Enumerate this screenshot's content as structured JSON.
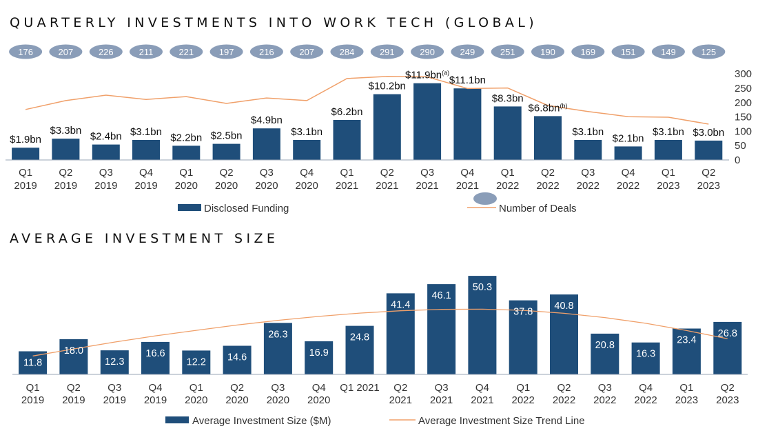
{
  "colors": {
    "bar": "#1f4e7a",
    "line": "#f0a06a",
    "pill": "#8a9db8",
    "axis": "#9aa5b5"
  },
  "chart_data": [
    {
      "type": "bar",
      "title": "QUARTERLY INVESTMENTS INTO WORK TECH (GLOBAL)",
      "categories": [
        "Q1 2019",
        "Q2 2019",
        "Q3 2019",
        "Q4 2019",
        "Q1 2020",
        "Q2 2020",
        "Q3 2020",
        "Q4 2020",
        "Q1 2021",
        "Q2 2021",
        "Q3 2021",
        "Q4 2021",
        "Q1 2022",
        "Q2 2022",
        "Q3 2022",
        "Q4 2022",
        "Q1 2023",
        "Q2 2023"
      ],
      "x_ticks": [
        [
          "Q1",
          "2019"
        ],
        [
          "Q2",
          "2019"
        ],
        [
          "Q3",
          "2019"
        ],
        [
          "Q4",
          "2019"
        ],
        [
          "Q1",
          "2020"
        ],
        [
          "Q2",
          "2020"
        ],
        [
          "Q3",
          "2020"
        ],
        [
          "Q4",
          "2020"
        ],
        [
          "Q1",
          "2021"
        ],
        [
          "Q2",
          "2021"
        ],
        [
          "Q3",
          "2021"
        ],
        [
          "Q4",
          "2021"
        ],
        [
          "Q1",
          "2022"
        ],
        [
          "Q2",
          "2022"
        ],
        [
          "Q3",
          "2022"
        ],
        [
          "Q4",
          "2022"
        ],
        [
          "Q1",
          "2023"
        ],
        [
          "Q2",
          "2023"
        ]
      ],
      "series": [
        {
          "name": "Disclosed Funding",
          "values": [
            1.9,
            3.3,
            2.4,
            3.1,
            2.2,
            2.5,
            4.9,
            3.1,
            6.2,
            10.2,
            11.9,
            11.1,
            8.3,
            6.8,
            3.1,
            2.1,
            3.1,
            3.0
          ],
          "labels": [
            "$1.9bn",
            "$3.3bn",
            "$2.4bn",
            "$3.1bn",
            "$2.2bn",
            "$2.5bn",
            "$4.9bn",
            "$3.1bn",
            "$6.2bn",
            "$10.2bn",
            "$11.9bn",
            "$11.1bn",
            "$8.3bn",
            "$6.8bn",
            "$3.1bn",
            "$2.1bn",
            "$3.1bn",
            "$3.0bn"
          ],
          "footnotes": [
            "",
            "",
            "",
            "",
            "",
            "",
            "",
            "",
            "",
            "",
            "(a)",
            "",
            "",
            "(b)",
            "",
            "",
            "",
            ""
          ]
        },
        {
          "name": "Number of Deals",
          "values": [
            176,
            207,
            226,
            211,
            221,
            197,
            216,
            207,
            284,
            291,
            290,
            249,
            251,
            190,
            169,
            151,
            149,
            125
          ]
        }
      ],
      "y2_ticks": [
        "300",
        "250",
        "200",
        "150",
        "100",
        "50",
        "0"
      ],
      "y2lim": [
        0,
        300
      ]
    },
    {
      "type": "bar",
      "title": "AVERAGE INVESTMENT SIZE",
      "x_ticks": [
        [
          "Q1",
          "2019"
        ],
        [
          "Q2",
          "2019"
        ],
        [
          "Q3",
          "2019"
        ],
        [
          "Q4",
          "2019"
        ],
        [
          "Q1",
          "2020"
        ],
        [
          "Q2",
          "2020"
        ],
        [
          "Q3",
          "2020"
        ],
        [
          "Q4",
          "2020"
        ],
        [
          "Q1 2021",
          ""
        ],
        [
          "Q2",
          "2021"
        ],
        [
          "Q3",
          "2021"
        ],
        [
          "Q4",
          "2021"
        ],
        [
          "Q1",
          "2022"
        ],
        [
          "Q2",
          "2022"
        ],
        [
          "Q3",
          "2022"
        ],
        [
          "Q4",
          "2022"
        ],
        [
          "Q1",
          "2023"
        ],
        [
          "Q2",
          "2023"
        ]
      ],
      "series": [
        {
          "name": "Average Investment Size ($M)",
          "values": [
            11.8,
            18.0,
            12.3,
            16.6,
            12.2,
            14.6,
            26.3,
            16.9,
            24.8,
            41.4,
            46.1,
            50.3,
            37.8,
            40.8,
            20.8,
            16.3,
            23.4,
            26.8
          ],
          "labels": [
            "11.8",
            "18.0",
            "12.3",
            "16.6",
            "12.2",
            "14.6",
            "26.3",
            "16.9",
            "24.8",
            "41.4",
            "46.1",
            "50.3",
            "37.8",
            "40.8",
            "20.8",
            "16.3",
            "23.4",
            "26.8"
          ]
        },
        {
          "name": "Average Investment Size Trend Line",
          "values": [
            9.4,
            13.0,
            16.5,
            19.7,
            22.5,
            25.2,
            27.6,
            29.6,
            31.3,
            32.5,
            33.2,
            33.3,
            32.7,
            31.2,
            29.0,
            26.1,
            22.4,
            18.2
          ]
        }
      ]
    }
  ]
}
